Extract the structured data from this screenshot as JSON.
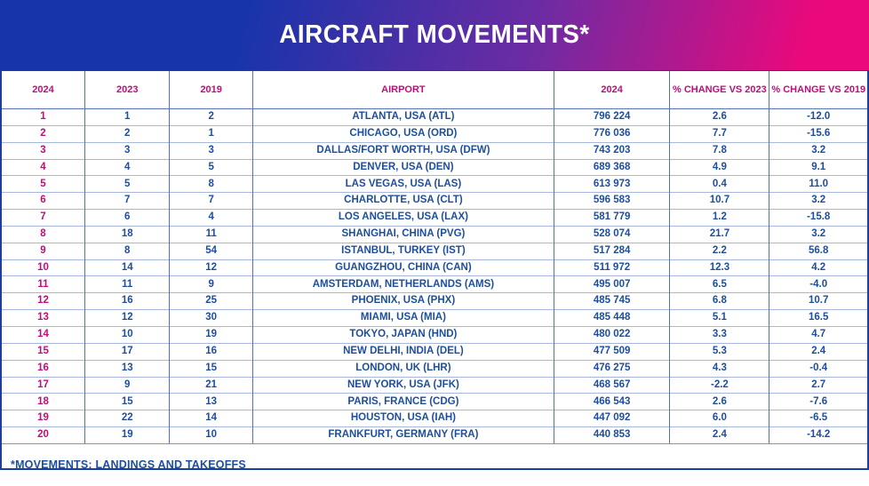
{
  "title": "AIRCRAFT MOVEMENTS*",
  "footnote": "*MOVEMENTS: LANDINGS AND TAKEOFFS",
  "colors": {
    "banner_blue": "#1834ab",
    "banner_purple": "#6f2ba3",
    "banner_pink": "#e9097c",
    "header_text": "#c00d77",
    "rank_text": "#c00d77",
    "body_text": "#1d4e9e",
    "grid_vertical": "#5472b5",
    "grid_horizontal": "#a8b8dc",
    "outer_border": "#1e3f97"
  },
  "chart_data": {
    "type": "table",
    "title": "AIRCRAFT MOVEMENTS*",
    "columns": [
      "2024",
      "2023",
      "2019",
      "AIRPORT",
      "2024",
      "% CHANGE VS 2023",
      "% CHANGE VS 2019"
    ],
    "rows": [
      [
        "1",
        "1",
        "2",
        "ATLANTA, USA (ATL)",
        "796 224",
        "2.6",
        "-12.0"
      ],
      [
        "2",
        "2",
        "1",
        "CHICAGO, USA (ORD)",
        "776 036",
        "7.7",
        "-15.6"
      ],
      [
        "3",
        "3",
        "3",
        "DALLAS/FORT WORTH, USA (DFW)",
        "743 203",
        "7.8",
        "3.2"
      ],
      [
        "4",
        "4",
        "5",
        "DENVER, USA (DEN)",
        "689 368",
        "4.9",
        "9.1"
      ],
      [
        "5",
        "5",
        "8",
        "LAS VEGAS, USA (LAS)",
        "613 973",
        "0.4",
        "11.0"
      ],
      [
        "6",
        "7",
        "7",
        "CHARLOTTE, USA (CLT)",
        "596 583",
        "10.7",
        "3.2"
      ],
      [
        "7",
        "6",
        "4",
        "LOS ANGELES, USA (LAX)",
        "581 779",
        "1.2",
        "-15.8"
      ],
      [
        "8",
        "18",
        "11",
        "SHANGHAI, CHINA (PVG)",
        "528 074",
        "21.7",
        "3.2"
      ],
      [
        "9",
        "8",
        "54",
        "ISTANBUL, TURKEY (IST)",
        "517 284",
        "2.2",
        "56.8"
      ],
      [
        "10",
        "14",
        "12",
        "GUANGZHOU, CHINA (CAN)",
        "511 972",
        "12.3",
        "4.2"
      ],
      [
        "11",
        "11",
        "9",
        "AMSTERDAM, NETHERLANDS (AMS)",
        "495 007",
        "6.5",
        "-4.0"
      ],
      [
        "12",
        "16",
        "25",
        "PHOENIX, USA (PHX)",
        "485 745",
        "6.8",
        "10.7"
      ],
      [
        "13",
        "12",
        "30",
        "MIAMI, USA (MIA)",
        "485 448",
        "5.1",
        "16.5"
      ],
      [
        "14",
        "10",
        "19",
        "TOKYO, JAPAN (HND)",
        "480 022",
        "3.3",
        "4.7"
      ],
      [
        "15",
        "17",
        "16",
        "NEW DELHI, INDIA (DEL)",
        "477 509",
        "5.3",
        "2.4"
      ],
      [
        "16",
        "13",
        "15",
        "LONDON, UK (LHR)",
        "476 275",
        "4.3",
        "-0.4"
      ],
      [
        "17",
        "9",
        "21",
        "NEW YORK, USA (JFK)",
        "468 567",
        "-2.2",
        "2.7"
      ],
      [
        "18",
        "15",
        "13",
        "PARIS, FRANCE (CDG)",
        "466 543",
        "2.6",
        "-7.6"
      ],
      [
        "19",
        "22",
        "14",
        "HOUSTON, USA (IAH)",
        "447 092",
        "6.0",
        "-6.5"
      ],
      [
        "20",
        "19",
        "10",
        "FRANKFURT, GERMANY (FRA)",
        "440 853",
        "2.4",
        "-14.2"
      ]
    ],
    "footnote": "*MOVEMENTS: LANDINGS AND TAKEOFFS"
  }
}
